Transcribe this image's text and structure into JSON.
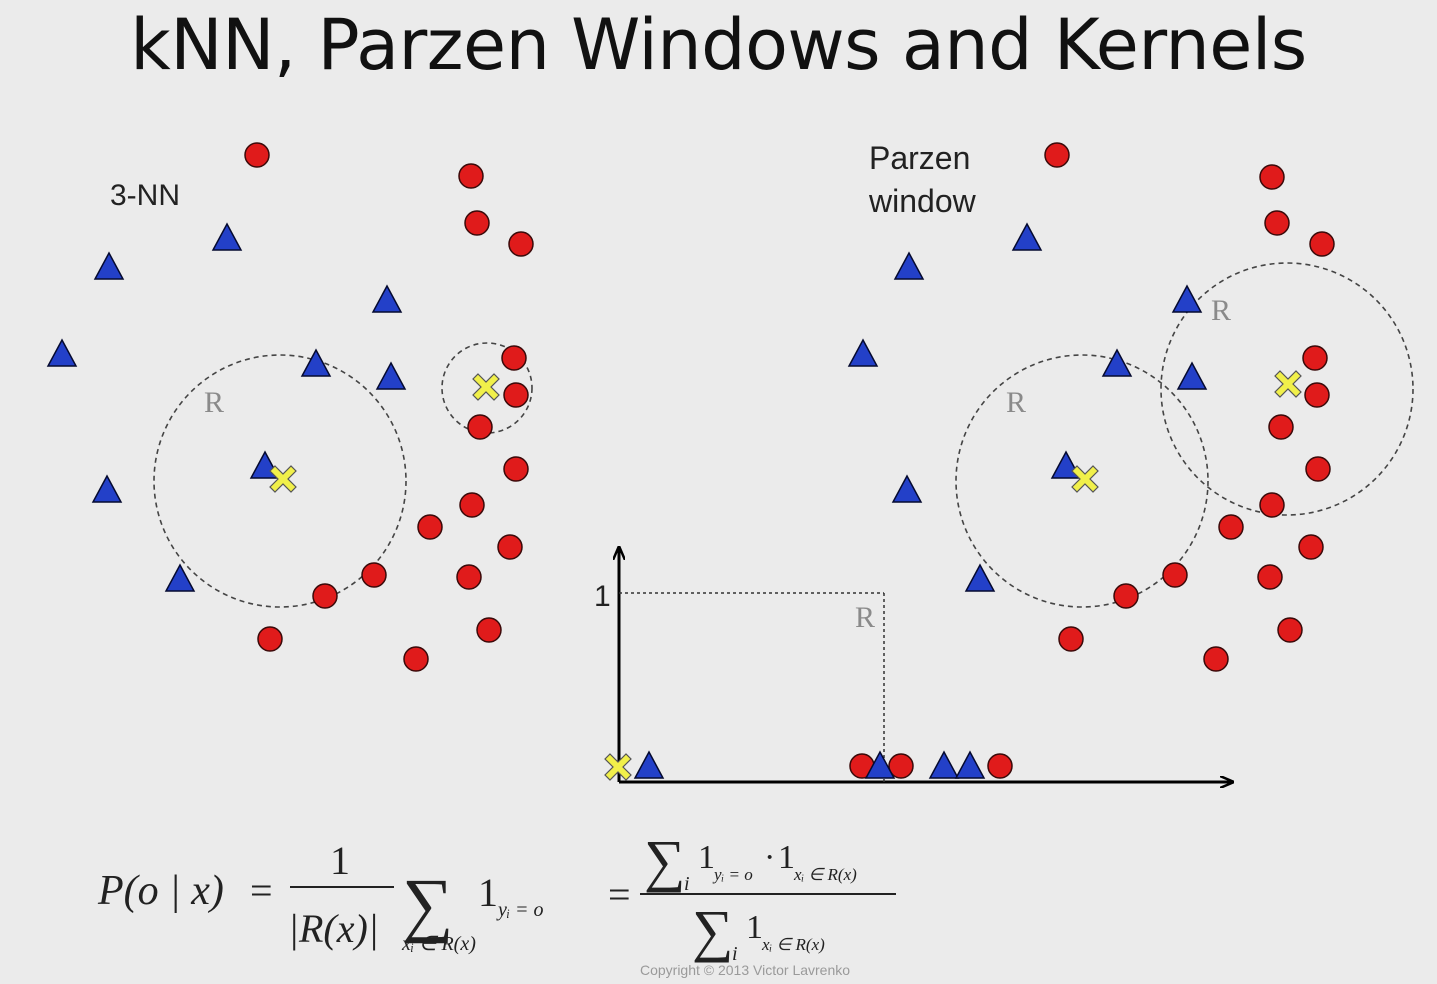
{
  "title": "kNN, Parzen Windows and Kernels",
  "left_panel": {
    "label": "3-NN",
    "region_label": "R"
  },
  "right_panel": {
    "label_line1": "Parzen",
    "label_line2": "window",
    "region_label_a": "R",
    "region_label_b": "R"
  },
  "kernel_plot": {
    "y_tick": "1",
    "region_label": "R"
  },
  "formula": {
    "lhs": "P(o | x)",
    "equals": "=",
    "numerator_one": "1",
    "denominator": "|R(x)|",
    "sum_symbol": "∑",
    "indicator": "1",
    "indicator_sub": "yᵢ = o",
    "sum_sub": "xᵢ ∈ R(x)",
    "rhs_num_sub_i": "i",
    "rhs_num_ind1": "1",
    "rhs_num_ind1_sub": "yᵢ = o",
    "rhs_dot": "·",
    "rhs_num_ind2": "1",
    "rhs_num_ind2_sub": "xᵢ ∈ R(x)",
    "rhs_den_sub_i": "i",
    "rhs_den_ind": "1",
    "rhs_den_ind_sub": "xᵢ ∈ R(x)"
  },
  "copyright": "Copyright © 2013 Victor Lavrenko",
  "colors": {
    "circle_fill": "#e01b1b",
    "triangle_fill": "#2340c8",
    "query_fill": "#f1f04a",
    "background": "#ebebeb"
  }
}
